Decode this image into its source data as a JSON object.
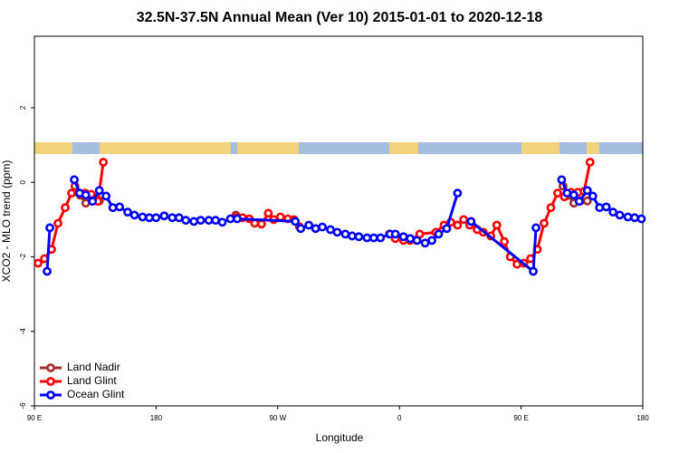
{
  "chart_data": {
    "type": "line",
    "title": "32.5N-37.5N Annual Mean (Ver 10)   2015-01-01 to 2020-12-18",
    "x_label": "Longitude",
    "y_label": "XCO2 - MLO trend (ppm)",
    "xlim": [
      90,
      540
    ],
    "xticks": [
      {
        "value": 90,
        "label": "90 E"
      },
      {
        "value": 180,
        "label": "180"
      },
      {
        "value": 270,
        "label": "90 W"
      },
      {
        "value": 360,
        "label": "0"
      },
      {
        "value": 450,
        "label": "90 E"
      },
      {
        "value": 540,
        "label": "180"
      }
    ],
    "ylim": [
      -6,
      3.92
    ],
    "yticks": [
      2,
      0,
      -2,
      -4,
      -6
    ],
    "legend": "bottom-left",
    "series": [
      {
        "name": "Land Nadir",
        "color": "#a52a2a",
        "x": [
          120,
          124,
          128,
          133,
          138,
          160,
          239,
          300,
          481,
          485,
          489,
          494,
          499
        ],
        "values": [
          -0.1,
          -0.35,
          -0.56,
          -0.5,
          -0.5,
          null,
          -0.88,
          null,
          -0.1,
          -0.35,
          -0.56,
          -0.5,
          -0.5
        ]
      },
      {
        "name": "Land Glint",
        "color": "#ff0000",
        "x": [
          92.7,
          97.4,
          102.7,
          107.4,
          112.8,
          117.5,
          122,
          127.5,
          132,
          137,
          141,
          190,
          239,
          244,
          249,
          253,
          258,
          263,
          267,
          272,
          277.5,
          282,
          286,
          320,
          352.6,
          357,
          363,
          368,
          375,
          387,
          393,
          398,
          403,
          407.5,
          412,
          417.5,
          422,
          427.6,
          432,
          437.6,
          442,
          447,
          452,
          457,
          462,
          467,
          472,
          477,
          482,
          487,
          492,
          496.6,
          501
        ],
        "values": [
          -2.17,
          -2.05,
          -1.8,
          -1.1,
          -0.68,
          -0.29,
          -0.27,
          -0.29,
          -0.32,
          -0.51,
          0.54,
          null,
          -0.95,
          -0.95,
          -0.98,
          -1.1,
          -1.12,
          -0.83,
          -1.0,
          -0.93,
          -0.98,
          -1.0,
          -1.19,
          null,
          -1.39,
          -1.51,
          -1.56,
          -1.56,
          -1.39,
          -1.34,
          -1.15,
          -1.07,
          -1.15,
          -1.0,
          -1.15,
          -1.27,
          -1.34,
          -1.44,
          -1.15,
          -1.59,
          -2.0,
          -2.2,
          -2.17,
          -2.05,
          -1.8,
          -1.1,
          -0.68,
          -0.29,
          -0.39,
          -0.27,
          -0.27,
          -0.24,
          0.54
        ]
      },
      {
        "name": "Ocean Glint",
        "color": "#0000ff",
        "x": [
          99.4,
          101.4,
          110,
          119.5,
          123.5,
          128,
          133,
          138,
          143,
          148,
          153,
          159,
          164,
          170,
          175,
          180,
          186,
          192,
          197,
          202,
          208,
          213,
          219,
          224,
          229,
          235,
          240,
          283,
          287,
          293,
          298,
          303,
          309,
          314,
          320,
          325,
          330,
          336,
          341,
          346,
          353,
          357,
          363,
          368,
          373,
          379,
          384,
          389,
          395,
          403,
          408,
          413,
          459,
          461,
          470,
          480,
          484,
          489,
          493,
          499,
          503,
          508,
          513,
          518,
          523,
          529,
          534,
          539
        ],
        "values": [
          -2.39,
          -1.22,
          null,
          0.07,
          -0.29,
          -0.34,
          -0.51,
          -0.22,
          -0.37,
          -0.68,
          -0.66,
          -0.8,
          -0.88,
          -0.93,
          -0.95,
          -0.95,
          -0.9,
          -0.95,
          -0.95,
          -1.02,
          -1.05,
          -1.02,
          -1.02,
          -1.02,
          -1.07,
          -0.98,
          -0.98,
          -1.05,
          -1.24,
          -1.15,
          -1.24,
          -1.2,
          -1.27,
          -1.34,
          -1.39,
          -1.44,
          -1.46,
          -1.49,
          -1.49,
          -1.49,
          -1.39,
          -1.39,
          -1.46,
          -1.51,
          -1.56,
          -1.63,
          -1.56,
          -1.39,
          -1.24,
          -0.29,
          null,
          -1.05,
          -2.39,
          -1.22,
          null,
          0.07,
          -0.29,
          -0.34,
          -0.51,
          -0.22,
          -0.37,
          -0.68,
          -0.66,
          -0.8,
          -0.88,
          -0.93,
          -0.95,
          -0.98
        ]
      }
    ]
  }
}
